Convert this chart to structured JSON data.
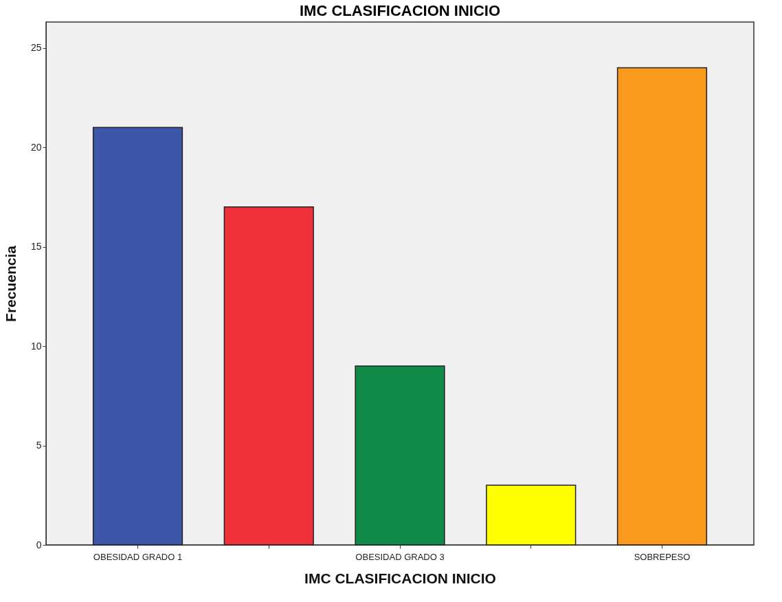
{
  "chart_data": {
    "type": "bar",
    "title": "IMC CLASIFICACION INICIO",
    "xlabel": "IMC CLASIFICACION INICIO",
    "ylabel": "Frecuencia",
    "categories": [
      "OBESIDAD GRADO 1",
      null,
      "OBESIDAD GRADO 3",
      null,
      "SOBREPESO"
    ],
    "values": [
      21,
      17,
      9,
      3,
      24
    ],
    "colors": [
      "#3d56a8",
      "#ef313a",
      "#0f8a47",
      "#ffff00",
      "#f99a1e"
    ],
    "ylim": [
      0,
      26.3
    ],
    "yticks": [
      0,
      5,
      10,
      15,
      20,
      25
    ],
    "grid": false
  }
}
